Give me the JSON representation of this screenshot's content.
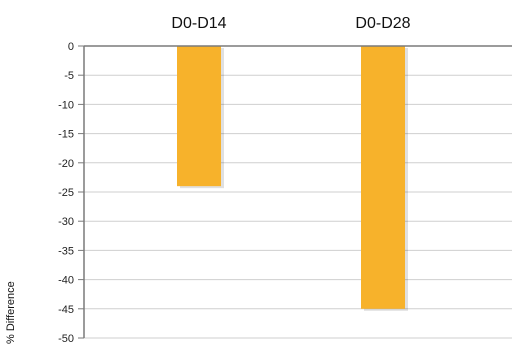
{
  "chart_data": {
    "type": "bar",
    "categories": [
      "D0-D14",
      "D0-D28"
    ],
    "values": [
      -24,
      -45
    ],
    "ylabel": "% Difference",
    "ylim": [
      -50,
      0
    ],
    "yticks": [
      0,
      -5,
      -10,
      -15,
      -20,
      -25,
      -30,
      -35,
      -40,
      -45,
      -50
    ],
    "grid": true,
    "category_axis_position": "top",
    "bar_color": "#F7B22B",
    "grid_color": "#CFCFCF",
    "axis_color": "#7A7A7A"
  }
}
